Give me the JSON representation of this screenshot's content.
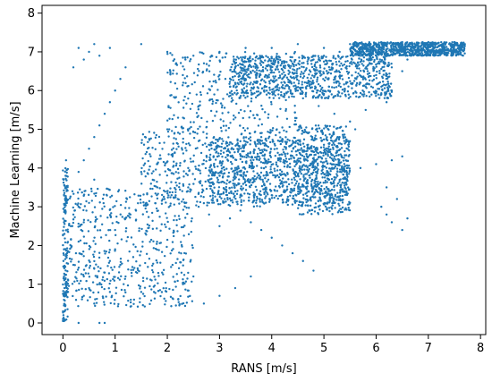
{
  "chart_data": {
    "type": "scatter",
    "title": "",
    "xlabel": "RANS [m/s]",
    "ylabel": "Machine Learning [m/s]",
    "xlim": [
      -0.4,
      8.1
    ],
    "ylim": [
      -0.3,
      8.2
    ],
    "x_ticks": [
      0,
      1,
      2,
      3,
      4,
      5,
      6,
      7,
      8
    ],
    "y_ticks": [
      0,
      1,
      2,
      3,
      4,
      5,
      6,
      7,
      8
    ],
    "grid": false,
    "legend": "none",
    "marker_color": "#1f77b4",
    "marker_size": 2,
    "points": [
      [
        0.0,
        0.05
      ],
      [
        0.0,
        0.3
      ],
      [
        0.02,
        0.6
      ],
      [
        0.03,
        0.9
      ],
      [
        0.02,
        1.2
      ],
      [
        0.01,
        1.6
      ],
      [
        0.02,
        1.9
      ],
      [
        0.03,
        2.3
      ],
      [
        0.02,
        2.6
      ],
      [
        0.03,
        2.9
      ],
      [
        0.04,
        3.2
      ],
      [
        0.05,
        3.5
      ],
      [
        0.06,
        4.2
      ],
      [
        0.05,
        3.8
      ],
      [
        0.0,
        0.1
      ],
      [
        0.01,
        0.2
      ],
      [
        0.02,
        0.45
      ],
      [
        0.0,
        0.75
      ],
      [
        0.1,
        1.1
      ],
      [
        0.2,
        1.5
      ],
      [
        0.25,
        1.8
      ],
      [
        0.3,
        2.1
      ],
      [
        0.35,
        2.4
      ],
      [
        0.4,
        2.6
      ],
      [
        0.45,
        2.9
      ],
      [
        0.5,
        3.1
      ],
      [
        0.55,
        3.4
      ],
      [
        0.6,
        3.7
      ],
      [
        0.15,
        2.5
      ],
      [
        0.2,
        2.8
      ],
      [
        0.3,
        3.0
      ],
      [
        0.4,
        1.2
      ],
      [
        0.5,
        0.9
      ],
      [
        0.6,
        1.4
      ],
      [
        0.7,
        1.0
      ],
      [
        0.8,
        1.3
      ],
      [
        0.9,
        1.6
      ],
      [
        1.0,
        1.9
      ],
      [
        1.1,
        1.5
      ],
      [
        1.2,
        1.2
      ],
      [
        0.3,
        3.9
      ],
      [
        0.4,
        4.2
      ],
      [
        0.5,
        4.5
      ],
      [
        0.6,
        4.8
      ],
      [
        0.7,
        5.1
      ],
      [
        0.8,
        5.4
      ],
      [
        0.9,
        5.7
      ],
      [
        1.0,
        6.0
      ],
      [
        1.1,
        6.3
      ],
      [
        1.2,
        6.6
      ],
      [
        0.3,
        7.1
      ],
      [
        0.5,
        7.0
      ],
      [
        0.7,
        6.9
      ],
      [
        0.9,
        7.1
      ],
      [
        0.2,
        6.6
      ],
      [
        0.4,
        6.8
      ],
      [
        0.6,
        7.2
      ],
      [
        0.3,
        0.0
      ],
      [
        0.7,
        0.0
      ],
      [
        0.8,
        0.0
      ],
      [
        0.4,
        0.7
      ],
      [
        0.6,
        0.5
      ],
      [
        0.9,
        0.8
      ],
      [
        1.3,
        0.6
      ],
      [
        1.5,
        0.8
      ],
      [
        1.7,
        1.1
      ],
      [
        1.9,
        1.3
      ],
      [
        2.1,
        1.5
      ],
      [
        2.3,
        1.0
      ],
      [
        2.5,
        1.2
      ],
      [
        2.7,
        0.5
      ],
      [
        3.0,
        0.7
      ],
      [
        3.3,
        0.9
      ],
      [
        3.6,
        1.2
      ],
      [
        1.0,
        2.4
      ],
      [
        1.2,
        2.7
      ],
      [
        1.4,
        2.9
      ],
      [
        1.6,
        3.1
      ],
      [
        1.8,
        3.3
      ],
      [
        2.0,
        3.4
      ],
      [
        2.2,
        3.2
      ],
      [
        2.4,
        3.5
      ],
      [
        2.6,
        3.0
      ],
      [
        2.8,
        2.8
      ],
      [
        3.0,
        2.5
      ],
      [
        3.2,
        2.7
      ],
      [
        3.4,
        2.9
      ],
      [
        3.6,
        2.6
      ],
      [
        3.8,
        2.4
      ],
      [
        4.0,
        2.2
      ],
      [
        4.2,
        2.0
      ],
      [
        4.4,
        1.8
      ],
      [
        4.6,
        1.6
      ],
      [
        4.8,
        1.35
      ],
      [
        1.5,
        3.9
      ],
      [
        1.8,
        4.1
      ],
      [
        2.1,
        4.3
      ],
      [
        2.4,
        4.0
      ],
      [
        2.7,
        4.2
      ],
      [
        3.0,
        3.8
      ],
      [
        3.3,
        4.0
      ],
      [
        3.6,
        3.7
      ],
      [
        3.9,
        3.9
      ],
      [
        4.2,
        3.6
      ],
      [
        4.5,
        3.8
      ],
      [
        4.8,
        3.5
      ],
      [
        5.1,
        3.7
      ],
      [
        5.4,
        3.9
      ],
      [
        5.7,
        4.0
      ],
      [
        6.0,
        4.1
      ],
      [
        6.3,
        4.2
      ],
      [
        6.5,
        4.3
      ],
      [
        2.8,
        3.1
      ],
      [
        3.1,
        3.2
      ],
      [
        3.4,
        3.3
      ],
      [
        3.7,
        3.1
      ],
      [
        4.0,
        3.3
      ],
      [
        4.3,
        3.2
      ],
      [
        4.6,
        3.1
      ],
      [
        4.9,
        3.0
      ],
      [
        5.2,
        3.2
      ],
      [
        5.5,
        3.1
      ],
      [
        3.2,
        4.4
      ],
      [
        3.5,
        4.6
      ],
      [
        3.8,
        4.8
      ],
      [
        4.1,
        4.5
      ],
      [
        4.4,
        4.7
      ],
      [
        4.7,
        4.9
      ],
      [
        5.0,
        4.6
      ],
      [
        5.3,
        4.8
      ],
      [
        5.6,
        5.0
      ],
      [
        2.0,
        5.0
      ],
      [
        2.3,
        5.3
      ],
      [
        2.6,
        5.6
      ],
      [
        2.9,
        5.9
      ],
      [
        3.2,
        6.1
      ],
      [
        3.5,
        6.3
      ],
      [
        3.8,
        6.5
      ],
      [
        4.1,
        6.6
      ],
      [
        4.4,
        6.7
      ],
      [
        4.7,
        6.8
      ],
      [
        5.0,
        6.9
      ],
      [
        5.3,
        7.0
      ],
      [
        5.6,
        7.05
      ],
      [
        5.9,
        7.1
      ],
      [
        6.2,
        7.15
      ],
      [
        6.5,
        7.2
      ],
      [
        6.8,
        7.2
      ],
      [
        7.1,
        7.2
      ],
      [
        7.4,
        7.2
      ],
      [
        7.7,
        7.2
      ],
      [
        3.0,
        6.4
      ],
      [
        3.3,
        6.2
      ],
      [
        3.6,
        6.0
      ],
      [
        3.9,
        6.1
      ],
      [
        4.2,
        6.3
      ],
      [
        4.5,
        6.0
      ],
      [
        4.8,
        6.2
      ],
      [
        5.1,
        6.1
      ],
      [
        5.4,
        6.0
      ],
      [
        5.7,
        6.2
      ],
      [
        6.0,
        6.4
      ],
      [
        6.3,
        6.6
      ],
      [
        6.6,
        6.9
      ],
      [
        4.6,
        5.8
      ],
      [
        4.9,
        5.6
      ],
      [
        5.2,
        5.4
      ],
      [
        5.5,
        5.2
      ],
      [
        5.8,
        5.5
      ],
      [
        1.5,
        7.2
      ],
      [
        2.0,
        7.0
      ],
      [
        2.5,
        6.9
      ],
      [
        3.0,
        7.0
      ],
      [
        3.5,
        7.1
      ],
      [
        4.0,
        7.1
      ],
      [
        4.5,
        7.2
      ],
      [
        5.0,
        7.1
      ],
      [
        5.5,
        7.2
      ],
      [
        6.0,
        7.2
      ],
      [
        6.5,
        7.25
      ],
      [
        7.0,
        7.25
      ],
      [
        7.5,
        7.25
      ],
      [
        7.7,
        7.15
      ],
      [
        7.6,
        7.1
      ],
      [
        7.3,
        7.1
      ],
      [
        7.0,
        7.1
      ],
      [
        6.7,
        7.0
      ],
      [
        6.1,
        3.0
      ],
      [
        6.2,
        2.8
      ],
      [
        6.3,
        2.6
      ],
      [
        6.5,
        2.4
      ],
      [
        6.6,
        2.7
      ],
      [
        6.4,
        3.2
      ],
      [
        6.2,
        3.5
      ],
      [
        6.1,
        5.9
      ],
      [
        6.2,
        5.7
      ],
      [
        6.3,
        6.0
      ],
      [
        6.5,
        6.5
      ],
      [
        6.6,
        6.8
      ]
    ],
    "dense_regions": [
      {
        "x_range": [
          5.5,
          7.7
        ],
        "y_range": [
          6.9,
          7.25
        ],
        "count": 900
      },
      {
        "x_range": [
          3.2,
          6.3
        ],
        "y_range": [
          5.8,
          6.9
        ],
        "count": 850
      },
      {
        "x_range": [
          2.8,
          5.5
        ],
        "y_range": [
          3.1,
          4.8
        ],
        "count": 700
      },
      {
        "x_range": [
          4.5,
          5.5
        ],
        "y_range": [
          2.8,
          5.1
        ],
        "count": 450
      },
      {
        "x_range": [
          0.0,
          2.5
        ],
        "y_range": [
          0.4,
          3.5
        ],
        "count": 550
      },
      {
        "x_range": [
          1.5,
          4.5
        ],
        "y_range": [
          3.0,
          5.0
        ],
        "count": 550
      },
      {
        "x_range": [
          2.0,
          4.5
        ],
        "y_range": [
          5.0,
          7.0
        ],
        "count": 300
      },
      {
        "x_range": [
          0.0,
          0.1
        ],
        "y_range": [
          0.0,
          4.0
        ],
        "count": 120
      }
    ]
  }
}
